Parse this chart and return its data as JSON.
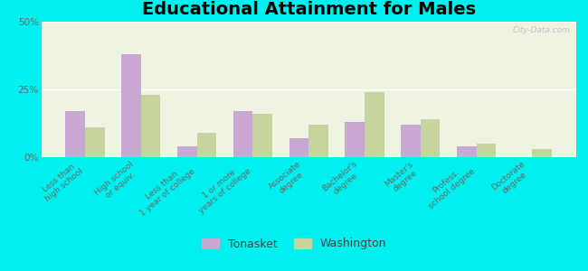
{
  "title": "Educational Attainment for Males",
  "categories": [
    "Less than\nhigh school",
    "High school\nor equiv.",
    "Less than\n1 year of college",
    "1 or more\nyears of college",
    "Associate\ndegree",
    "Bachelor's\ndegree",
    "Master's\ndegree",
    "Profess.\nschool degree",
    "Doctorate\ndegree"
  ],
  "tonasket": [
    17,
    38,
    4,
    17,
    7,
    13,
    12,
    4,
    0
  ],
  "washington": [
    11,
    23,
    9,
    16,
    12,
    24,
    14,
    5,
    3
  ],
  "tonasket_color": "#c9a8d4",
  "washington_color": "#c8d4a0",
  "bg_outer": "#00efef",
  "bg_inner": "#eef3e2",
  "ylim": [
    0,
    50
  ],
  "yticks": [
    0,
    25,
    50
  ],
  "ytick_labels": [
    "0%",
    "25%",
    "50%"
  ],
  "bar_width": 0.35,
  "title_fontsize": 14,
  "tick_fontsize": 6.5,
  "legend_fontsize": 9
}
